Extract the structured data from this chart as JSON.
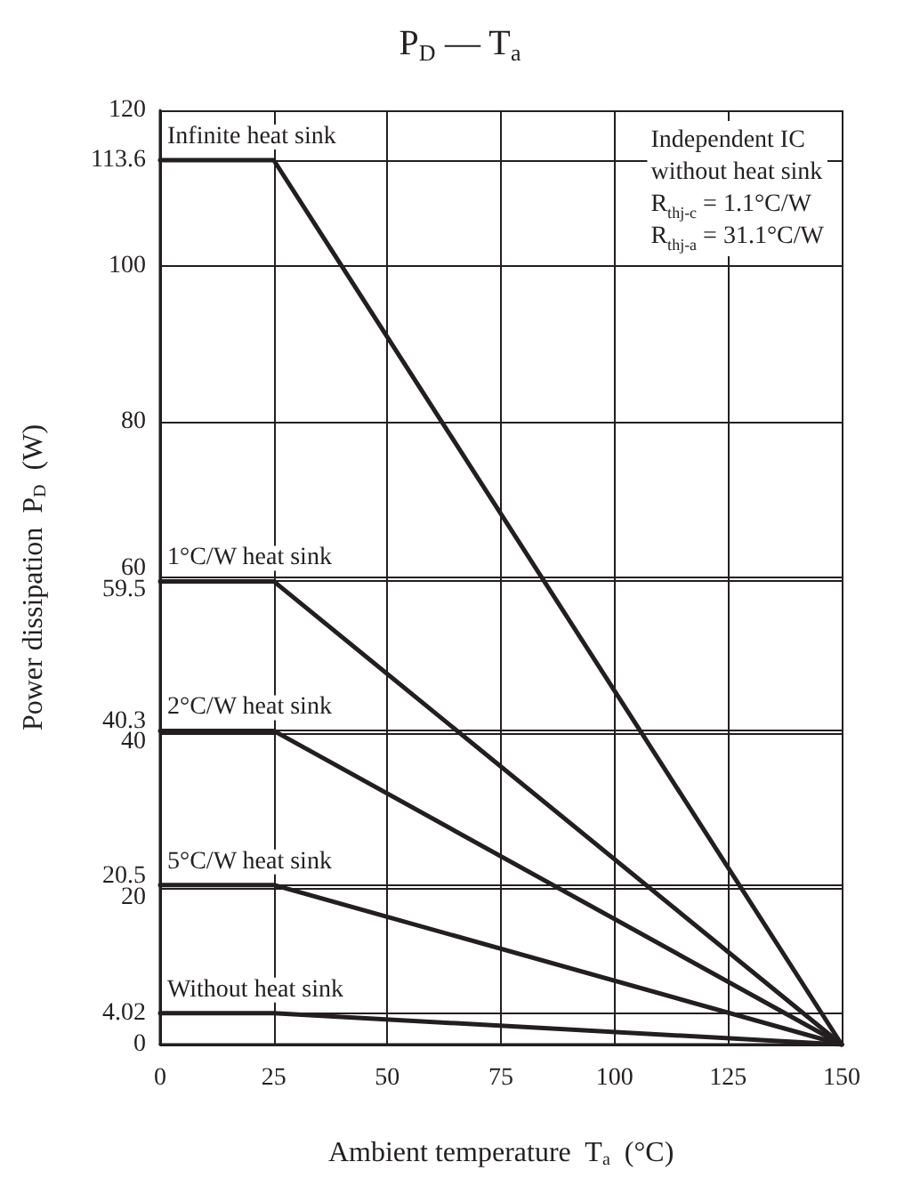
{
  "chart_data": {
    "type": "line",
    "title": "P$_{D}$ — T$_{a}$",
    "xlabel": "Ambient temperature  T$_{a}$  (°C)",
    "ylabel": "Power dissipation  P$_{D}$  (W)",
    "x": [
      0,
      25,
      150
    ],
    "series": [
      {
        "name": "Infinite heat sink",
        "color": "#231f20",
        "values": [
          113.6,
          113.6,
          0
        ]
      },
      {
        "name": "1°C/W heat sink",
        "color": "#231f20",
        "values": [
          59.5,
          59.5,
          0
        ]
      },
      {
        "name": "2°C/W heat sink",
        "color": "#231f20",
        "values": [
          40.3,
          40.3,
          0
        ]
      },
      {
        "name": "5°C/W heat sink",
        "color": "#231f20",
        "values": [
          20.5,
          20.5,
          0
        ]
      },
      {
        "name": "Without heat sink",
        "color": "#231f20",
        "values": [
          4.02,
          4.02,
          0
        ]
      }
    ],
    "xlim": [
      0,
      150
    ],
    "xticks": [
      0,
      25,
      50,
      75,
      100,
      125,
      150
    ],
    "ylim": [
      0,
      120
    ],
    "yticks": [
      0,
      4.02,
      20,
      20.5,
      40,
      40.3,
      59.5,
      60,
      80,
      100,
      113.6,
      120
    ],
    "annotations": [
      "Independent IC",
      "without heat sink",
      "R$_{thj-c}$ = 1.1°C/W",
      "R$_{thj-a}$ = 31.1°C/W"
    ],
    "grid": true,
    "legend": false,
    "marker": "none",
    "line_style": "solid"
  }
}
